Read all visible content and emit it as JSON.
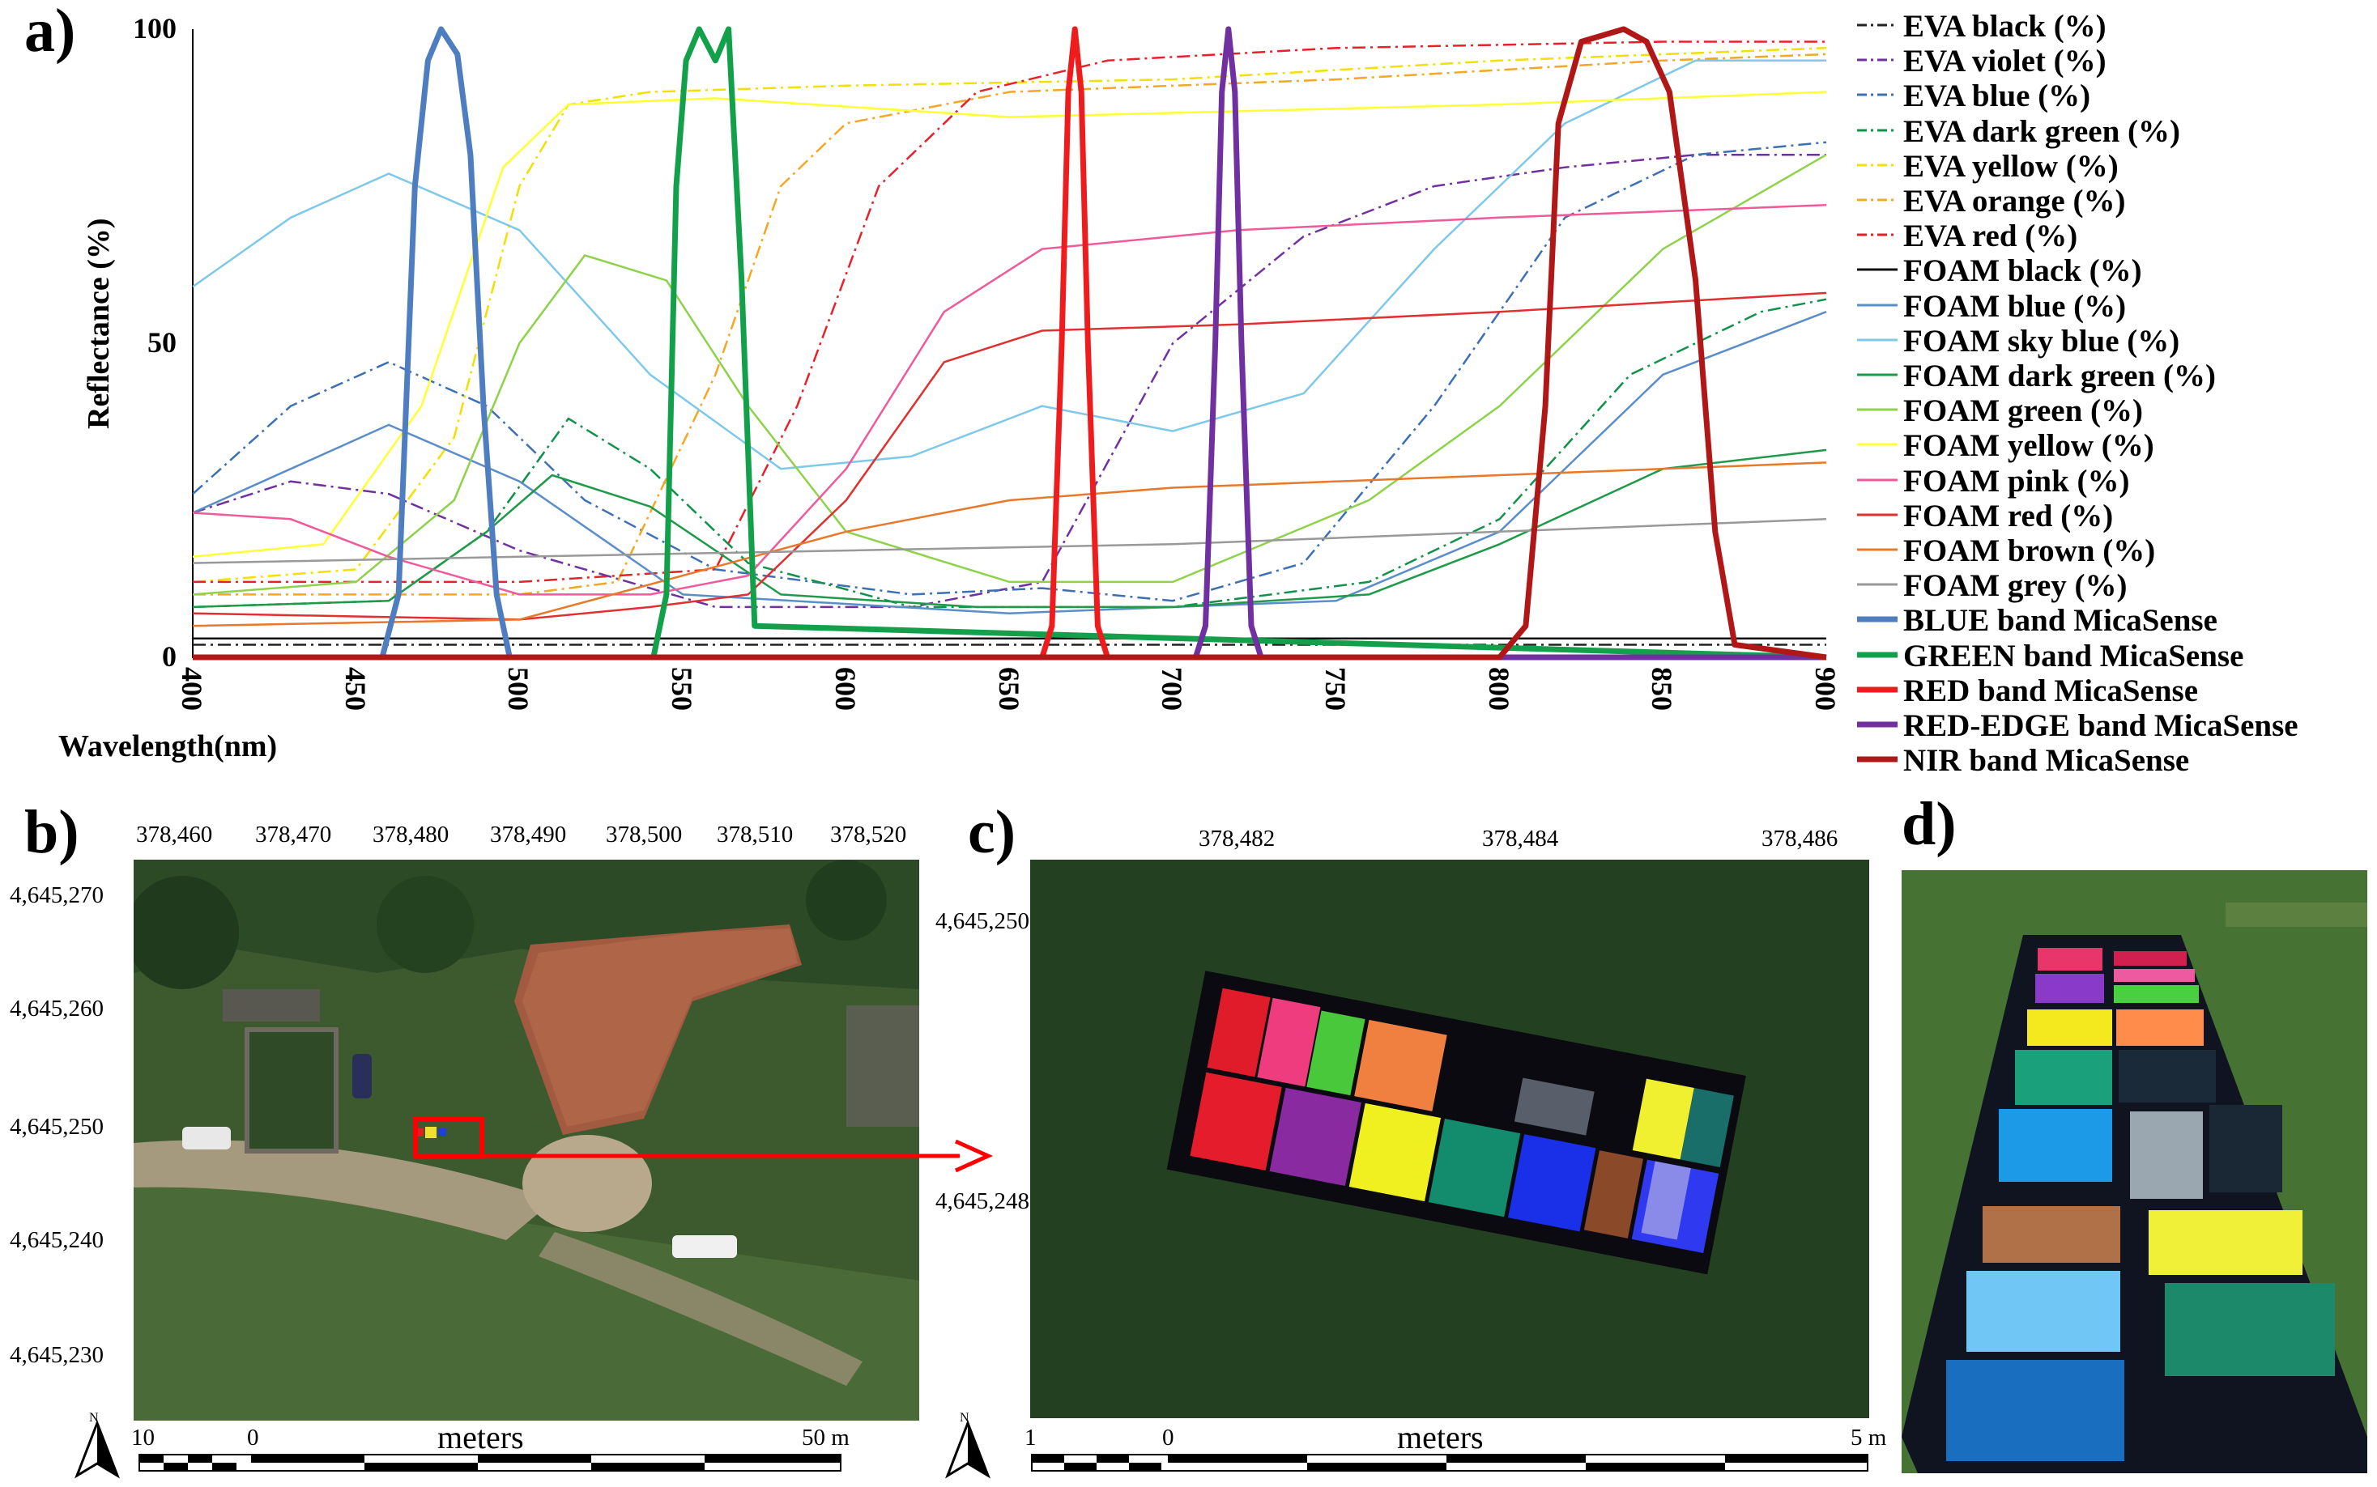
{
  "panels": {
    "a": "a)",
    "b": "b)",
    "c": "c)",
    "d": "d)"
  },
  "chart_data": {
    "type": "line",
    "title": "",
    "xlabel": "Wavelength(nm)",
    "ylabel": "Reflectance (%)",
    "xlim": [
      400,
      900
    ],
    "ylim": [
      0,
      100
    ],
    "x_ticks": [
      "400",
      "450",
      "500",
      "550",
      "600",
      "650",
      "700",
      "750",
      "800",
      "850",
      "900"
    ],
    "y_ticks": [
      "0",
      "50",
      "100"
    ],
    "series": [
      {
        "name": "EVA black (%)",
        "color": "#222222",
        "dash": "dashdot",
        "x": [
          400,
          900
        ],
        "y": [
          2,
          2
        ]
      },
      {
        "name": "EVA violet (%)",
        "color": "#7030a0",
        "dash": "dashdot",
        "x": [
          400,
          430,
          460,
          500,
          560,
          620,
          660,
          700,
          740,
          780,
          820,
          860,
          900
        ],
        "y": [
          23,
          28,
          26,
          17,
          8,
          8,
          12,
          50,
          67,
          75,
          78,
          80,
          80
        ]
      },
      {
        "name": "EVA blue (%)",
        "color": "#3d6fb4",
        "dash": "dashdot",
        "x": [
          400,
          430,
          460,
          490,
          520,
          560,
          620,
          660,
          700,
          740,
          780,
          820,
          860,
          900
        ],
        "y": [
          26,
          40,
          47,
          40,
          25,
          14,
          10,
          11,
          9,
          15,
          40,
          70,
          80,
          82
        ]
      },
      {
        "name": "EVA dark green (%)",
        "color": "#11924a",
        "dash": "dashdot",
        "x": [
          400,
          460,
          490,
          515,
          540,
          570,
          620,
          700,
          760,
          800,
          840,
          880,
          900
        ],
        "y": [
          8,
          9,
          20,
          38,
          30,
          15,
          8,
          8,
          12,
          22,
          45,
          55,
          57
        ]
      },
      {
        "name": "EVA yellow (%)",
        "color": "#f2e000",
        "dash": "dashdot",
        "x": [
          400,
          450,
          480,
          500,
          515,
          540,
          600,
          700,
          800,
          900
        ],
        "y": [
          12,
          14,
          35,
          75,
          88,
          90,
          91,
          92,
          95,
          97
        ]
      },
      {
        "name": "EVA orange (%)",
        "color": "#f5a623",
        "dash": "dashdot",
        "x": [
          400,
          500,
          530,
          560,
          580,
          600,
          650,
          750,
          850,
          900
        ],
        "y": [
          10,
          10,
          12,
          45,
          75,
          85,
          90,
          92,
          95,
          96
        ]
      },
      {
        "name": "EVA red (%)",
        "color": "#e8202a",
        "dash": "dashdot",
        "x": [
          400,
          500,
          560,
          585,
          610,
          640,
          680,
          750,
          850,
          900
        ],
        "y": [
          12,
          12,
          14,
          40,
          75,
          90,
          95,
          97,
          98,
          98
        ]
      },
      {
        "name": "FOAM black (%)",
        "color": "#111111",
        "dash": "solid",
        "x": [
          400,
          900
        ],
        "y": [
          3,
          3
        ]
      },
      {
        "name": "FOAM blue (%)",
        "color": "#5b8ec8",
        "dash": "solid",
        "x": [
          400,
          430,
          460,
          500,
          550,
          650,
          750,
          800,
          850,
          900
        ],
        "y": [
          23,
          30,
          37,
          28,
          10,
          7,
          9,
          20,
          45,
          55
        ]
      },
      {
        "name": "FOAM sky blue (%)",
        "color": "#7ec8ea",
        "dash": "solid",
        "x": [
          400,
          430,
          460,
          500,
          540,
          580,
          620,
          660,
          700,
          740,
          780,
          820,
          860,
          900
        ],
        "y": [
          59,
          70,
          77,
          68,
          45,
          30,
          32,
          40,
          36,
          42,
          65,
          85,
          95,
          95
        ]
      },
      {
        "name": "FOAM dark green (%)",
        "color": "#1e9a48",
        "dash": "solid",
        "x": [
          400,
          460,
          490,
          510,
          540,
          580,
          640,
          700,
          760,
          800,
          850,
          900
        ],
        "y": [
          8,
          9,
          20,
          29,
          24,
          10,
          8,
          8,
          10,
          18,
          30,
          33
        ]
      },
      {
        "name": "FOAM green (%)",
        "color": "#8ed24a",
        "dash": "solid",
        "x": [
          400,
          450,
          480,
          500,
          520,
          545,
          570,
          600,
          650,
          700,
          760,
          800,
          850,
          900
        ],
        "y": [
          10,
          12,
          25,
          50,
          64,
          60,
          40,
          20,
          12,
          12,
          25,
          40,
          65,
          80
        ]
      },
      {
        "name": "FOAM yellow (%)",
        "color": "#ffff33",
        "dash": "solid",
        "x": [
          400,
          440,
          470,
          495,
          515,
          560,
          650,
          800,
          900
        ],
        "y": [
          16,
          18,
          40,
          78,
          88,
          89,
          86,
          88,
          90
        ]
      },
      {
        "name": "FOAM pink (%)",
        "color": "#ee5a9a",
        "dash": "solid",
        "x": [
          400,
          430,
          460,
          500,
          540,
          570,
          600,
          630,
          660,
          720,
          800,
          900
        ],
        "y": [
          23,
          22,
          16,
          10,
          10,
          13,
          30,
          55,
          65,
          68,
          70,
          72
        ]
      },
      {
        "name": "FOAM red (%)",
        "color": "#e03030",
        "dash": "solid",
        "x": [
          400,
          500,
          540,
          570,
          600,
          630,
          660,
          720,
          800,
          900
        ],
        "y": [
          7,
          6,
          8,
          10,
          25,
          47,
          52,
          53,
          55,
          58
        ]
      },
      {
        "name": "FOAM brown (%)",
        "color": "#e8782a",
        "dash": "solid",
        "x": [
          400,
          500,
          550,
          600,
          650,
          700,
          800,
          900
        ],
        "y": [
          5,
          6,
          13,
          20,
          25,
          27,
          29,
          31
        ]
      },
      {
        "name": "FOAM grey (%)",
        "color": "#999999",
        "dash": "solid",
        "x": [
          400,
          500,
          600,
          700,
          800,
          900
        ],
        "y": [
          15,
          16,
          17,
          18,
          20,
          22
        ]
      },
      {
        "name": "BLUE band MicaSense",
        "color": "#4f7ec0",
        "dash": "bold",
        "x": [
          400,
          458,
          463,
          468,
          472,
          476,
          481,
          485,
          489,
          493,
          497,
          900
        ],
        "y": [
          0,
          0,
          10,
          75,
          95,
          100,
          96,
          80,
          40,
          10,
          0,
          0
        ]
      },
      {
        "name": "GREEN band MicaSense",
        "color": "#13a04a",
        "dash": "bold",
        "x": [
          400,
          541,
          545,
          548,
          551,
          555,
          560,
          564,
          568,
          572,
          900
        ],
        "y": [
          0,
          0,
          10,
          75,
          95,
          100,
          95,
          100,
          60,
          5,
          0
        ]
      },
      {
        "name": "RED band MicaSense",
        "color": "#ee1c1c",
        "dash": "bold",
        "x": [
          400,
          660,
          663,
          666,
          668,
          670,
          672,
          674,
          677,
          680,
          900
        ],
        "y": [
          0,
          0,
          5,
          50,
          90,
          100,
          90,
          50,
          5,
          0,
          0
        ]
      },
      {
        "name": "RED-EDGE band MicaSense",
        "color": "#7030a0",
        "dash": "bold",
        "x": [
          400,
          707,
          710,
          713,
          715,
          717,
          719,
          721,
          724,
          727,
          900
        ],
        "y": [
          0,
          0,
          5,
          50,
          90,
          100,
          90,
          50,
          5,
          0,
          0
        ]
      },
      {
        "name": "NIR band MicaSense",
        "color": "#b01818",
        "dash": "bold",
        "x": [
          400,
          800,
          808,
          814,
          818,
          825,
          838,
          845,
          852,
          860,
          866,
          872,
          900
        ],
        "y": [
          0,
          0,
          5,
          40,
          85,
          98,
          100,
          98,
          90,
          60,
          20,
          2,
          0
        ]
      }
    ]
  },
  "legend": [
    {
      "label": "EVA black (%)",
      "color": "#222222",
      "dash": "dashdot"
    },
    {
      "label": "EVA violet (%)",
      "color": "#7030a0",
      "dash": "dashdot"
    },
    {
      "label": "EVA blue (%)",
      "color": "#3d6fb4",
      "dash": "dashdot"
    },
    {
      "label": "EVA dark green (%)",
      "color": "#11924a",
      "dash": "dashdot"
    },
    {
      "label": "EVA yellow (%)",
      "color": "#f2e000",
      "dash": "dashdot"
    },
    {
      "label": "EVA orange (%)",
      "color": "#f5a623",
      "dash": "dashdot"
    },
    {
      "label": "EVA red (%)",
      "color": "#e8202a",
      "dash": "dashdot"
    },
    {
      "label": "FOAM black (%)",
      "color": "#111111",
      "dash": "solid"
    },
    {
      "label": "FOAM blue (%)",
      "color": "#5b8ec8",
      "dash": "solid"
    },
    {
      "label": "FOAM sky blue (%)",
      "color": "#7ec8ea",
      "dash": "solid"
    },
    {
      "label": "FOAM dark green (%)",
      "color": "#1e9a48",
      "dash": "solid"
    },
    {
      "label": "FOAM green (%)",
      "color": "#8ed24a",
      "dash": "solid"
    },
    {
      "label": "FOAM yellow (%)",
      "color": "#ffff33",
      "dash": "solid"
    },
    {
      "label": "FOAM pink (%)",
      "color": "#ee5a9a",
      "dash": "solid"
    },
    {
      "label": "FOAM red (%)",
      "color": "#e03030",
      "dash": "solid"
    },
    {
      "label": "FOAM brown (%)",
      "color": "#e8782a",
      "dash": "solid"
    },
    {
      "label": "FOAM grey (%)",
      "color": "#999999",
      "dash": "solid"
    },
    {
      "label": "BLUE band MicaSense",
      "color": "#4f7ec0",
      "dash": "bold"
    },
    {
      "label": "GREEN band MicaSense",
      "color": "#13a04a",
      "dash": "bold"
    },
    {
      "label": "RED band MicaSense",
      "color": "#ee1c1c",
      "dash": "bold"
    },
    {
      "label": "RED-EDGE band MicaSense",
      "color": "#7030a0",
      "dash": "bold"
    },
    {
      "label": "NIR band MicaSense",
      "color": "#b01818",
      "dash": "bold"
    }
  ],
  "map_b": {
    "x_coords": [
      "378,460",
      "378,470",
      "378,480",
      "378,490",
      "378,500",
      "378,510",
      "378,520"
    ],
    "y_coords": [
      "4,645,270",
      "4,645,260",
      "4,645,250",
      "4,645,240",
      "4,645,230"
    ],
    "scale_left": "10",
    "scale_zero": "0",
    "scale_units": "meters",
    "scale_right": "50 m",
    "north": "N"
  },
  "map_c": {
    "x_coords": [
      "378,482",
      "378,484",
      "378,486"
    ],
    "y_coords": [
      "4,645,250",
      "4,645,248"
    ],
    "scale_left": "1",
    "scale_zero": "0",
    "scale_units": "meters",
    "scale_right": "5 m",
    "north": "N"
  }
}
